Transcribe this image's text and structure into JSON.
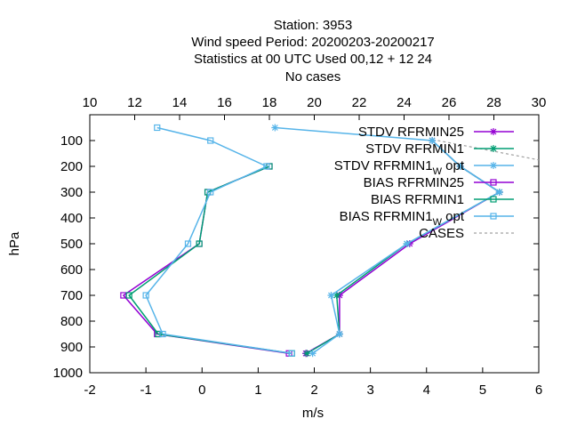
{
  "chart_data": {
    "type": "line",
    "title_lines": [
      "Station:     3953",
      "Wind speed  Period: 20200203-20200217",
      "Statistics at 00 UTC  Used  00,12  + 12 24",
      "No cases"
    ],
    "xlabel": "m/s",
    "ylabel": "hPa",
    "xlim": [
      -2,
      6
    ],
    "ylim": [
      1000,
      0
    ],
    "x_ticks": [
      -2,
      -1,
      0,
      1,
      2,
      3,
      4,
      5,
      6
    ],
    "y_ticks": [
      100,
      200,
      300,
      400,
      500,
      600,
      700,
      800,
      900,
      1000
    ],
    "x2_label": "",
    "x2lim": [
      10,
      30
    ],
    "x2_ticks": [
      10,
      12,
      14,
      16,
      18,
      20,
      22,
      24,
      26,
      28,
      30
    ],
    "grid": false,
    "legend_position": "top-right",
    "series": [
      {
        "name": "STDV RFRMIN25",
        "color": "#9400d3",
        "marker": "star",
        "points": [
          [
            4.1,
            100
          ],
          [
            4.6,
            200
          ],
          [
            5.3,
            300
          ],
          [
            3.7,
            500
          ],
          [
            2.45,
            700
          ],
          [
            2.45,
            850
          ],
          [
            1.85,
            925
          ]
        ]
      },
      {
        "name": "STDV RFRMIN1",
        "color": "#009e73",
        "marker": "star",
        "points": [
          [
            4.1,
            100
          ],
          [
            4.6,
            200
          ],
          [
            5.3,
            300
          ],
          [
            3.65,
            500
          ],
          [
            2.4,
            700
          ],
          [
            2.45,
            850
          ],
          [
            1.87,
            925
          ]
        ]
      },
      {
        "name": "STDV RFRMIN1",
        "name_sub": "W",
        "name_suffix": " opt",
        "color": "#56b4e9",
        "marker": "star",
        "points": [
          [
            1.3,
            50
          ],
          [
            4.1,
            100
          ],
          [
            4.6,
            200
          ],
          [
            5.3,
            300
          ],
          [
            3.65,
            500
          ],
          [
            2.3,
            700
          ],
          [
            2.45,
            850
          ],
          [
            1.97,
            925
          ]
        ]
      },
      {
        "name": "BIAS RFRMIN25",
        "color": "#9400d3",
        "marker": "square",
        "points": [
          [
            1.2,
            200
          ],
          [
            0.1,
            300
          ],
          [
            -0.05,
            500
          ],
          [
            -1.4,
            700
          ],
          [
            -0.8,
            850
          ],
          [
            1.55,
            925
          ]
        ]
      },
      {
        "name": "BIAS RFRMIN1",
        "color": "#009e73",
        "marker": "square",
        "points": [
          [
            1.2,
            200
          ],
          [
            0.1,
            300
          ],
          [
            -0.05,
            500
          ],
          [
            -1.3,
            700
          ],
          [
            -0.78,
            850
          ],
          [
            1.6,
            925
          ]
        ]
      },
      {
        "name": "BIAS RFRMIN1",
        "name_sub": "W",
        "name_suffix": " opt",
        "color": "#56b4e9",
        "marker": "square",
        "points": [
          [
            -0.8,
            50
          ],
          [
            0.15,
            100
          ],
          [
            1.15,
            200
          ],
          [
            0.15,
            300
          ],
          [
            -0.25,
            500
          ],
          [
            -1.0,
            700
          ],
          [
            -0.7,
            850
          ],
          [
            1.6,
            925
          ]
        ]
      },
      {
        "name": "CASES",
        "color": "#a0a0a0",
        "dashed": true,
        "marker": "none",
        "axis": "x2",
        "points": [
          [
            25.5,
            100
          ],
          [
            30,
            175
          ]
        ]
      }
    ]
  }
}
